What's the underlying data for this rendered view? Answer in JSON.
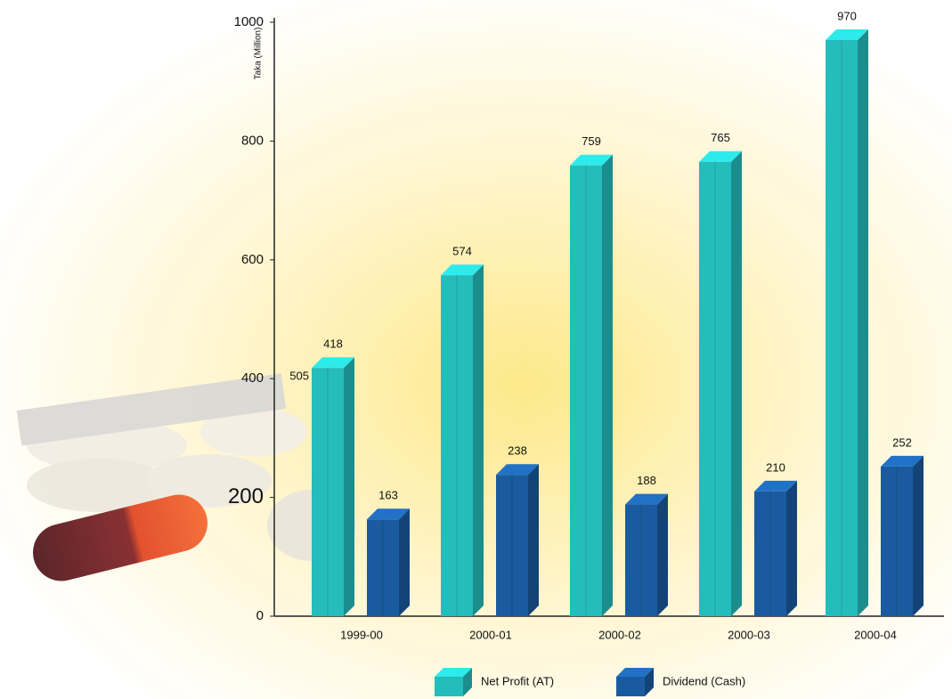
{
  "chart_data": {
    "type": "bar3d",
    "y_label": "Taka (Million)",
    "categories": [
      "1999-00",
      "2000-01",
      "2000-02",
      "2000-03",
      "2000-04"
    ],
    "series": [
      {
        "name": "Net Profit (AT)",
        "color": "#25bcbc",
        "values": [
          418,
          574,
          759,
          765,
          970
        ]
      },
      {
        "name": "Dividend (Cash)",
        "color": "#1a5b9f",
        "values": [
          163,
          238,
          188,
          210,
          252
        ]
      }
    ],
    "annotations": [
      "505"
    ],
    "ylim": [
      0,
      1000
    ],
    "yticks": [
      0,
      200,
      400,
      600,
      800,
      1000
    ],
    "grid": false
  }
}
